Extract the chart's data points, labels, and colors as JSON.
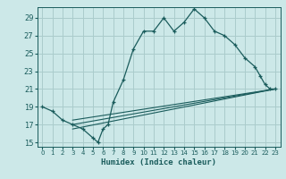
{
  "title": "",
  "xlabel": "Humidex (Indice chaleur)",
  "ylabel": "",
  "bg_color": "#cce8e8",
  "grid_color": "#aacccc",
  "line_color": "#1a5c5c",
  "xlim": [
    -0.5,
    23.5
  ],
  "ylim": [
    14.5,
    30.2
  ],
  "xticks": [
    0,
    1,
    2,
    3,
    4,
    5,
    6,
    7,
    8,
    9,
    10,
    11,
    12,
    13,
    14,
    15,
    16,
    17,
    18,
    19,
    20,
    21,
    22,
    23
  ],
  "yticks": [
    15,
    17,
    19,
    21,
    23,
    25,
    27,
    29
  ],
  "main_line": [
    [
      0,
      19.0
    ],
    [
      1,
      18.5
    ],
    [
      2,
      17.5
    ],
    [
      3,
      17.0
    ],
    [
      4,
      16.5
    ],
    [
      5,
      15.5
    ],
    [
      5.5,
      15.0
    ],
    [
      6,
      16.5
    ],
    [
      6.5,
      17.0
    ],
    [
      7,
      19.5
    ],
    [
      8,
      22.0
    ],
    [
      9,
      25.5
    ],
    [
      10,
      27.5
    ],
    [
      11,
      27.5
    ],
    [
      12,
      29.0
    ],
    [
      13,
      27.5
    ],
    [
      14,
      28.5
    ],
    [
      15,
      30.0
    ],
    [
      16,
      29.0
    ],
    [
      17,
      27.5
    ],
    [
      18,
      27.0
    ],
    [
      19,
      26.0
    ],
    [
      20,
      24.5
    ],
    [
      21,
      23.5
    ],
    [
      21.5,
      22.5
    ],
    [
      22,
      21.5
    ],
    [
      22.5,
      21.0
    ],
    [
      23,
      21.0
    ]
  ],
  "diag_lines": [
    [
      [
        3,
        17.5
      ],
      [
        23,
        21.0
      ]
    ],
    [
      [
        3,
        17.0
      ],
      [
        23,
        21.0
      ]
    ],
    [
      [
        3,
        16.5
      ],
      [
        23,
        21.0
      ]
    ]
  ]
}
